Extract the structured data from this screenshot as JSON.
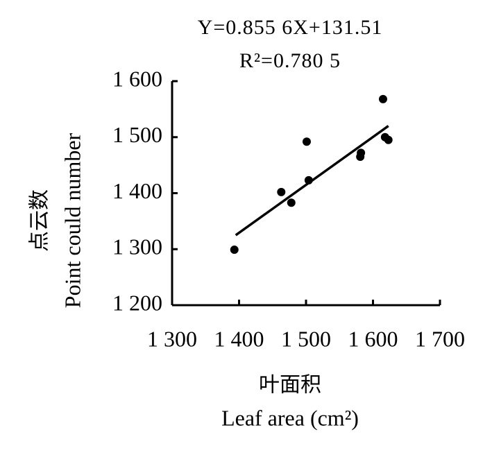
{
  "chart_data": {
    "type": "scatter",
    "equation": "Y=0.855 6X+131.51",
    "r_squared": "R²=0.780 5",
    "ylabel_cn": "点云数",
    "ylabel": "Point could number",
    "xlabel_cn": "叶面积",
    "xlabel": "Leaf area (cm²)",
    "x": [
      1393,
      1463,
      1478,
      1501,
      1504,
      1582,
      1581,
      1615,
      1618,
      1623
    ],
    "y": [
      1299,
      1402,
      1383,
      1492,
      1423,
      1472,
      1465,
      1568,
      1500,
      1495
    ],
    "color": "#000000",
    "trendline": {
      "x": [
        1395,
        1623
      ],
      "y": [
        1325,
        1520
      ]
    },
    "xlim": [
      1300,
      1700
    ],
    "xticks": [
      {
        "value": 1300,
        "label": "1 300"
      },
      {
        "value": 1400,
        "label": "1 400"
      },
      {
        "value": 1500,
        "label": "1 500"
      },
      {
        "value": 1600,
        "label": "1 600"
      },
      {
        "value": 1700,
        "label": "1 700"
      }
    ],
    "ylim": [
      1200,
      1600
    ],
    "yticks": [
      {
        "value": 1200,
        "label": "1 200"
      },
      {
        "value": 1300,
        "label": "1 300"
      },
      {
        "value": 1400,
        "label": "1 400"
      },
      {
        "value": 1500,
        "label": "1 500"
      },
      {
        "value": 1600,
        "label": "1 600"
      }
    ]
  }
}
